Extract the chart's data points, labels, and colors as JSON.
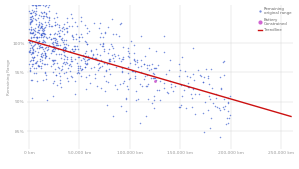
{
  "title": "",
  "xlabel": "",
  "ylabel": "Remaining Range",
  "xlim": [
    -2000,
    262000
  ],
  "ylim": [
    0.82,
    1.065
  ],
  "xticks": [
    0,
    50000,
    100000,
    150000,
    200000,
    250000
  ],
  "xtick_labels": [
    "0 km",
    "50,000 km",
    "100,000 km",
    "150,000 km",
    "200,000 km",
    "250,000 km"
  ],
  "yticks": [
    0.85,
    0.9,
    0.95,
    1.0
  ],
  "ytick_labels": [
    "85%",
    "90%",
    "95%",
    "100%"
  ],
  "scatter_color": "#3355cc",
  "battery_color": "#cc55cc",
  "trendline_color": "#cc1111",
  "background_color": "#ffffff",
  "grid_color": "#d8d8d8",
  "legend_entries": [
    "Remaining\noriginal range",
    "Battery\nConstrained",
    "Trendline"
  ],
  "trendline_x": [
    0,
    260000
  ],
  "trendline_y": [
    1.005,
    0.875
  ],
  "seed": 42,
  "n_main": 700,
  "n_outlier_high": 30
}
